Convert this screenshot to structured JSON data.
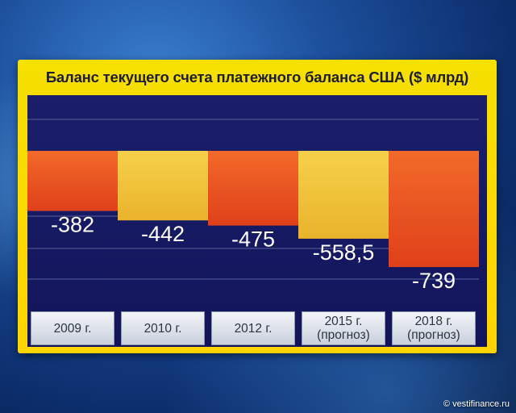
{
  "chart_data": {
    "type": "bar",
    "title": "Баланс текущего счета платежного баланса США ($ млрд)",
    "categories": [
      [
        "2009 г."
      ],
      [
        "2010 г."
      ],
      [
        "2012 г."
      ],
      [
        "2015 г.",
        "(прогноз)"
      ],
      [
        "2018 г.",
        "(прогноз)"
      ]
    ],
    "values": [
      -382,
      -442,
      -475,
      -558.5,
      -739
    ],
    "value_labels": [
      "-382",
      "-442",
      "-475",
      "-558,5",
      "-739"
    ],
    "bar_colors": [
      "#ee4f1c",
      "#f2c83a",
      "#ee4f1c",
      "#f2c83a",
      "#ee4f1c"
    ],
    "ylim": [
      -1100,
      0
    ],
    "grid": true,
    "xlabel": "",
    "ylabel": ""
  },
  "watermark": "© vestifinance.ru"
}
